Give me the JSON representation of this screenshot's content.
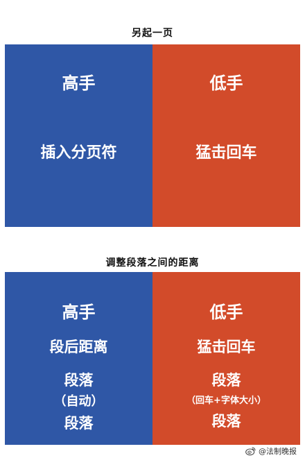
{
  "section1": {
    "title": "另起一页",
    "left": {
      "heading": "高手",
      "body": "插入分页符",
      "color": "#2f57a6"
    },
    "right": {
      "heading": "低手",
      "body": "猛击回车",
      "color": "#d24b2a"
    }
  },
  "section2": {
    "title": "调整段落之间的距离",
    "left": {
      "heading": "高手",
      "subheading": "段后距离",
      "lines": [
        "段落",
        "（自动）",
        "段落"
      ],
      "color": "#2f57a6"
    },
    "right": {
      "heading": "低手",
      "subheading": "猛击回车",
      "lines": [
        "段落",
        "（回车+字体大小）",
        "段落"
      ],
      "color": "#d24b2a"
    }
  },
  "watermark": {
    "text": "@法制晚报",
    "icon": "weibo-icon"
  }
}
